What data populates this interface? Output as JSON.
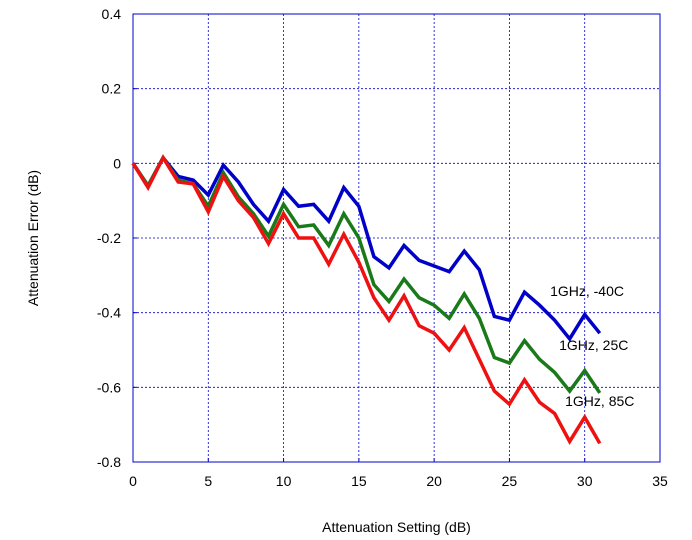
{
  "chart_data": {
    "type": "line",
    "title": "",
    "xlabel": "Attenuation Setting (dB)",
    "ylabel": "Attenuation Error (dB)",
    "xlim": [
      0,
      35
    ],
    "ylim": [
      -0.8,
      0.4
    ],
    "xticks": [
      0,
      5,
      10,
      15,
      20,
      25,
      30,
      35
    ],
    "xtick_labels": [
      "0",
      "5",
      "10",
      "15",
      "20",
      "25",
      "30",
      "35"
    ],
    "yticks": [
      -0.8,
      -0.6,
      -0.4,
      -0.2,
      0,
      0.2,
      0.4
    ],
    "ytick_labels": [
      "-0.8",
      "-0.6",
      "-0.4",
      "-0.2",
      "0",
      "0.2",
      "0.4"
    ],
    "grid": true,
    "x": [
      0,
      1,
      2,
      3,
      4,
      5,
      6,
      7,
      8,
      9,
      10,
      11,
      12,
      13,
      14,
      15,
      16,
      17,
      18,
      19,
      20,
      21,
      22,
      23,
      24,
      25,
      26,
      27,
      28,
      29,
      30,
      31
    ],
    "series": [
      {
        "label": "1GHz, -40C",
        "color": "#0000c8",
        "values": [
          0,
          -0.06,
          0.015,
          -0.035,
          -0.045,
          -0.085,
          -0.005,
          -0.05,
          -0.11,
          -0.155,
          -0.07,
          -0.115,
          -0.11,
          -0.155,
          -0.065,
          -0.115,
          -0.25,
          -0.28,
          -0.22,
          -0.26,
          -0.275,
          -0.29,
          -0.235,
          -0.285,
          -0.41,
          -0.42,
          -0.345,
          -0.38,
          -0.42,
          -0.47,
          -0.405,
          -0.455
        ]
      },
      {
        "label": "1GHz, 25C",
        "color": "#1a7a1a",
        "values": [
          0,
          -0.06,
          0.015,
          -0.045,
          -0.055,
          -0.115,
          -0.025,
          -0.09,
          -0.135,
          -0.195,
          -0.11,
          -0.17,
          -0.165,
          -0.22,
          -0.135,
          -0.2,
          -0.325,
          -0.37,
          -0.31,
          -0.36,
          -0.38,
          -0.415,
          -0.35,
          -0.415,
          -0.52,
          -0.535,
          -0.475,
          -0.525,
          -0.56,
          -0.61,
          -0.555,
          -0.615
        ]
      },
      {
        "label": "1GHz, 85C",
        "color": "#ee1111",
        "values": [
          0,
          -0.065,
          0.015,
          -0.05,
          -0.055,
          -0.13,
          -0.035,
          -0.1,
          -0.145,
          -0.215,
          -0.135,
          -0.2,
          -0.2,
          -0.27,
          -0.19,
          -0.265,
          -0.36,
          -0.42,
          -0.355,
          -0.435,
          -0.455,
          -0.5,
          -0.44,
          -0.525,
          -0.61,
          -0.645,
          -0.58,
          -0.64,
          -0.67,
          -0.745,
          -0.68,
          -0.75
        ]
      }
    ],
    "annotations": [
      {
        "text": "1GHz, -40C",
        "x": 27.7,
        "y": -0.355
      },
      {
        "text": "1GHz, 25C",
        "x": 28.3,
        "y": -0.5
      },
      {
        "text": "1GHz, 85C",
        "x": 28.7,
        "y": -0.65
      }
    ]
  }
}
